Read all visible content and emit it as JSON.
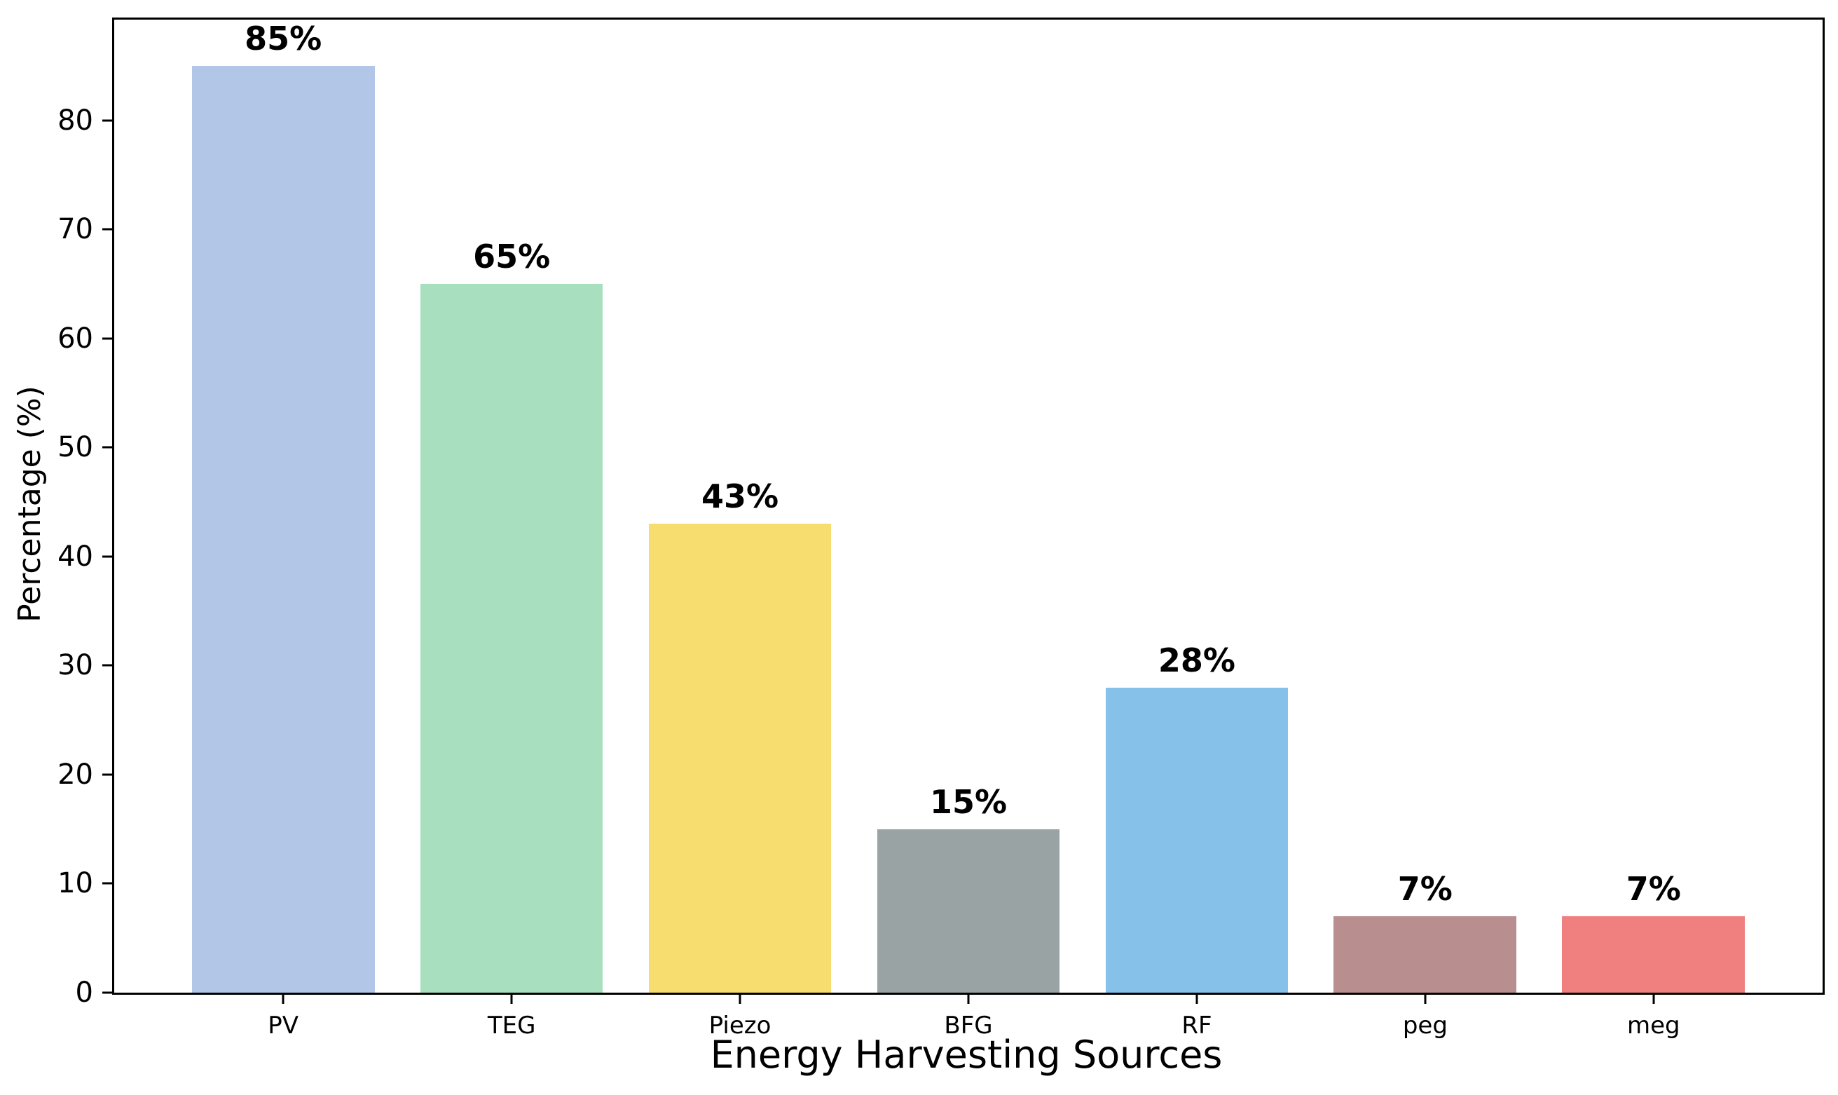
{
  "figure": {
    "background": "#ffffff",
    "axis_color": "#000000",
    "text_color": "#000000"
  },
  "chart_data": {
    "type": "bar",
    "title": "",
    "xlabel": "Energy Harvesting Sources",
    "ylabel": "Percentage (%)",
    "categories": [
      "PV",
      "TEG",
      "Piezo",
      "BFG",
      "RF",
      "peg",
      "meg"
    ],
    "values": [
      85,
      65,
      43,
      15,
      28,
      7,
      7
    ],
    "value_labels": [
      "85%",
      "65%",
      "43%",
      "15%",
      "28%",
      "7%",
      "7%"
    ],
    "bar_colors": [
      "#b2c6e8",
      "#a8dfbf",
      "#f7dc6f",
      "#99a3a4",
      "#85c1e9",
      "#b98e8e",
      "#f08080"
    ],
    "yticks": [
      0,
      10,
      20,
      30,
      40,
      50,
      60,
      70,
      80
    ],
    "ylim": [
      0,
      89.25
    ],
    "grid": false,
    "legend_position": "none"
  }
}
